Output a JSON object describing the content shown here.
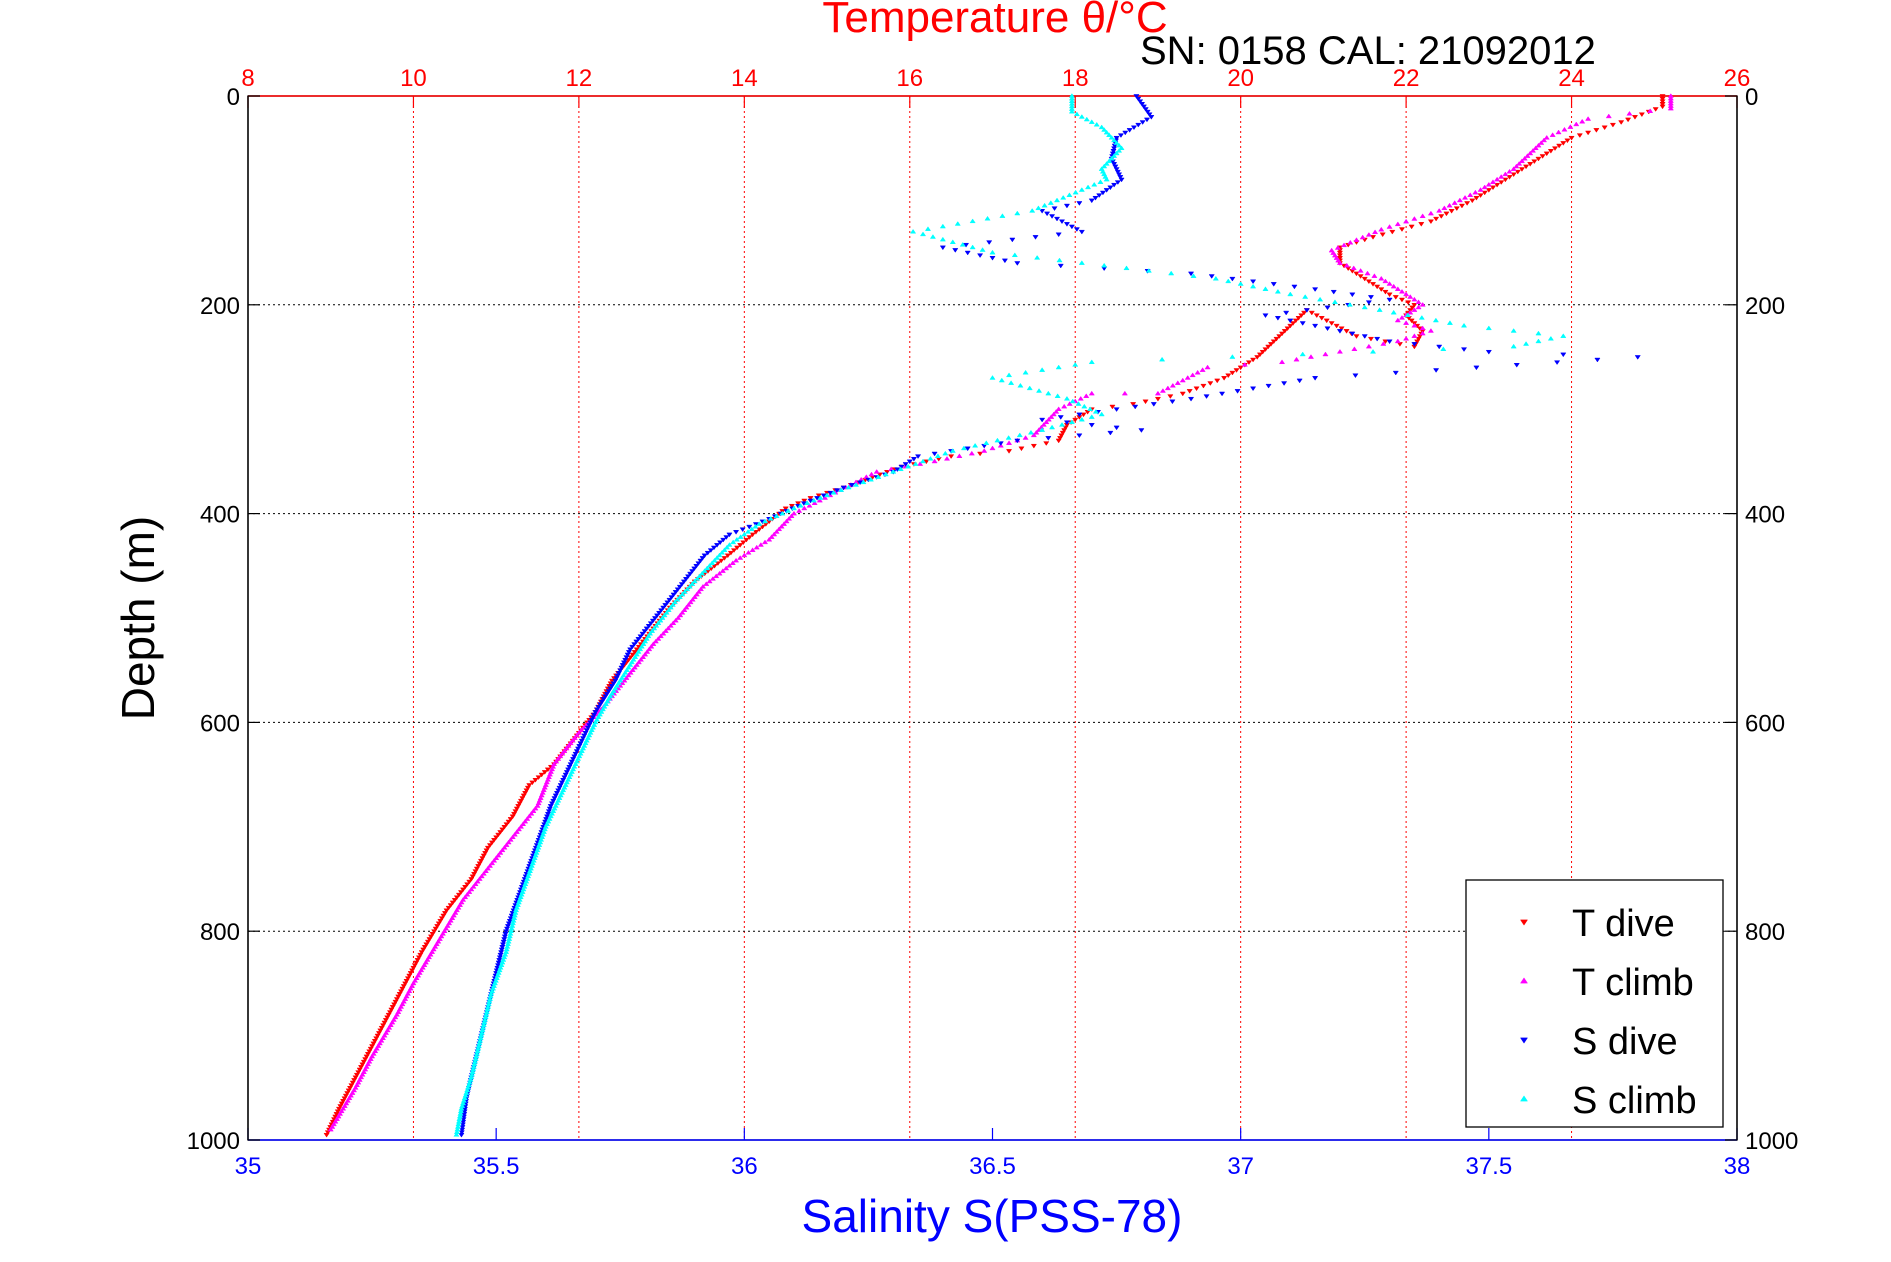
{
  "chart_data": {
    "type": "scatter",
    "title": "Temperature θ/°C",
    "subtitle": "SN: 0158  CAL: 21092012",
    "xlabel": "Salinity S(PSS-78)",
    "ylabel": "Depth (m)",
    "x_salinity": {
      "range": [
        35,
        38
      ],
      "ticks": [
        "35",
        "35.5",
        "36",
        "36.5",
        "37",
        "37.5",
        "38"
      ]
    },
    "x_temperature": {
      "range": [
        8,
        26
      ],
      "ticks": [
        "8",
        "10",
        "12",
        "14",
        "16",
        "18",
        "20",
        "22",
        "24",
        "26"
      ]
    },
    "y_depth": {
      "range": [
        0,
        1000
      ],
      "reversed": true,
      "ticks": [
        "0",
        "200",
        "400",
        "600",
        "800",
        "1000"
      ]
    },
    "grid": true,
    "legend_position": "bottom-right",
    "colors": {
      "title": "#ff0000",
      "temperature_axis": "#ff0000",
      "salinity_axis": "#0000ff",
      "grid_temperature": "#ff0000",
      "grid_depth": "#000000"
    },
    "series": [
      {
        "name": "T dive",
        "axis": "temperature",
        "marker": "triangle-down",
        "color": "#ff0000",
        "points": [
          [
            25.1,
            0
          ],
          [
            25.1,
            10
          ],
          [
            24.6,
            25
          ],
          [
            24.0,
            40
          ],
          [
            23.6,
            60
          ],
          [
            23.2,
            80
          ],
          [
            22.8,
            100
          ],
          [
            22.3,
            120
          ],
          [
            21.6,
            135
          ],
          [
            21.2,
            145
          ],
          [
            21.2,
            160
          ],
          [
            21.5,
            175
          ],
          [
            21.8,
            190
          ],
          [
            22.1,
            200
          ],
          [
            22.0,
            210
          ],
          [
            22.2,
            225
          ],
          [
            22.1,
            240
          ],
          [
            21.4,
            230
          ],
          [
            20.8,
            205
          ],
          [
            20.2,
            250
          ],
          [
            19.8,
            270
          ],
          [
            19.3,
            285
          ],
          [
            18.7,
            295
          ],
          [
            18.2,
            300
          ],
          [
            17.9,
            315
          ],
          [
            17.8,
            330
          ],
          [
            17.2,
            340
          ],
          [
            16.5,
            345
          ],
          [
            15.9,
            355
          ],
          [
            15.2,
            375
          ],
          [
            14.8,
            385
          ],
          [
            14.5,
            395
          ],
          [
            14.1,
            420
          ],
          [
            13.8,
            440
          ],
          [
            13.4,
            465
          ],
          [
            13.1,
            490
          ],
          [
            12.9,
            510
          ],
          [
            12.6,
            540
          ],
          [
            12.4,
            560
          ],
          [
            12.2,
            590
          ],
          [
            12.0,
            610
          ],
          [
            11.7,
            640
          ],
          [
            11.4,
            660
          ],
          [
            11.2,
            690
          ],
          [
            10.9,
            720
          ],
          [
            10.7,
            750
          ],
          [
            10.4,
            780
          ],
          [
            10.1,
            820
          ],
          [
            9.9,
            850
          ],
          [
            9.7,
            880
          ],
          [
            9.5,
            910
          ],
          [
            9.3,
            940
          ],
          [
            9.1,
            970
          ],
          [
            8.95,
            995
          ]
        ]
      },
      {
        "name": "T climb",
        "axis": "temperature",
        "marker": "triangle-up",
        "color": "#ff00ff",
        "points": [
          [
            25.2,
            0
          ],
          [
            25.2,
            12
          ],
          [
            24.2,
            22
          ],
          [
            23.7,
            40
          ],
          [
            23.3,
            70
          ],
          [
            22.9,
            90
          ],
          [
            22.4,
            110
          ],
          [
            21.7,
            128
          ],
          [
            21.1,
            148
          ],
          [
            21.2,
            160
          ],
          [
            21.7,
            175
          ],
          [
            21.9,
            185
          ],
          [
            22.2,
            200
          ],
          [
            21.9,
            215
          ],
          [
            22.3,
            225
          ],
          [
            21.9,
            235
          ],
          [
            20.5,
            255
          ],
          [
            19.6,
            260
          ],
          [
            19.0,
            285
          ],
          [
            18.2,
            285
          ],
          [
            17.8,
            300
          ],
          [
            17.5,
            325
          ],
          [
            16.9,
            340
          ],
          [
            16.3,
            350
          ],
          [
            15.6,
            360
          ],
          [
            15.1,
            380
          ],
          [
            14.6,
            400
          ],
          [
            14.3,
            425
          ],
          [
            13.9,
            445
          ],
          [
            13.5,
            470
          ],
          [
            13.2,
            500
          ],
          [
            12.9,
            525
          ],
          [
            12.6,
            555
          ],
          [
            12.3,
            585
          ],
          [
            12.0,
            610
          ],
          [
            11.7,
            640
          ],
          [
            11.5,
            680
          ],
          [
            11.2,
            710
          ],
          [
            10.9,
            740
          ],
          [
            10.6,
            770
          ],
          [
            10.3,
            810
          ],
          [
            10.0,
            850
          ],
          [
            9.8,
            880
          ],
          [
            9.5,
            920
          ],
          [
            9.3,
            950
          ],
          [
            9.0,
            990
          ]
        ]
      },
      {
        "name": "S dive",
        "axis": "salinity",
        "marker": "triangle-down",
        "color": "#0000ff",
        "points": [
          [
            36.79,
            0
          ],
          [
            36.82,
            20
          ],
          [
            36.75,
            40
          ],
          [
            36.74,
            60
          ],
          [
            36.76,
            80
          ],
          [
            36.7,
            100
          ],
          [
            36.6,
            110
          ],
          [
            36.68,
            130
          ],
          [
            36.4,
            145
          ],
          [
            36.55,
            160
          ],
          [
            36.9,
            170
          ],
          [
            37.15,
            185
          ],
          [
            37.3,
            195
          ],
          [
            37.05,
            210
          ],
          [
            37.3,
            235
          ],
          [
            37.5,
            245
          ],
          [
            37.8,
            250
          ],
          [
            37.15,
            270
          ],
          [
            36.9,
            290
          ],
          [
            36.75,
            300
          ],
          [
            36.6,
            310
          ],
          [
            36.8,
            320
          ],
          [
            36.55,
            330
          ],
          [
            36.35,
            345
          ],
          [
            36.3,
            360
          ],
          [
            36.2,
            375
          ],
          [
            36.12,
            390
          ],
          [
            36.05,
            405
          ],
          [
            35.97,
            420
          ],
          [
            35.92,
            440
          ],
          [
            35.87,
            470
          ],
          [
            35.82,
            500
          ],
          [
            35.77,
            530
          ],
          [
            35.74,
            560
          ],
          [
            35.7,
            590
          ],
          [
            35.67,
            620
          ],
          [
            35.64,
            650
          ],
          [
            35.61,
            680
          ],
          [
            35.58,
            720
          ],
          [
            35.55,
            760
          ],
          [
            35.52,
            800
          ],
          [
            35.5,
            840
          ],
          [
            35.48,
            880
          ],
          [
            35.46,
            920
          ],
          [
            35.44,
            960
          ],
          [
            35.43,
            995
          ]
        ]
      },
      {
        "name": "S climb",
        "axis": "salinity",
        "marker": "triangle-up",
        "color": "#00ffff",
        "points": [
          [
            36.66,
            0
          ],
          [
            36.66,
            15
          ],
          [
            36.72,
            30
          ],
          [
            36.76,
            50
          ],
          [
            36.72,
            70
          ],
          [
            36.73,
            80
          ],
          [
            36.68,
            90
          ],
          [
            36.58,
            110
          ],
          [
            36.34,
            130
          ],
          [
            36.5,
            150
          ],
          [
            36.95,
            175
          ],
          [
            37.1,
            190
          ],
          [
            37.28,
            205
          ],
          [
            37.45,
            220
          ],
          [
            37.65,
            230
          ],
          [
            37.55,
            240
          ],
          [
            36.7,
            255
          ],
          [
            36.5,
            270
          ],
          [
            36.65,
            290
          ],
          [
            36.72,
            305
          ],
          [
            36.6,
            320
          ],
          [
            36.42,
            340
          ],
          [
            36.3,
            360
          ],
          [
            36.18,
            380
          ],
          [
            36.1,
            395
          ],
          [
            36.03,
            410
          ],
          [
            35.97,
            430
          ],
          [
            35.92,
            455
          ],
          [
            35.86,
            485
          ],
          [
            35.81,
            515
          ],
          [
            35.77,
            545
          ],
          [
            35.73,
            575
          ],
          [
            35.7,
            600
          ],
          [
            35.66,
            640
          ],
          [
            35.63,
            670
          ],
          [
            35.6,
            700
          ],
          [
            35.57,
            740
          ],
          [
            35.54,
            780
          ],
          [
            35.52,
            820
          ],
          [
            35.49,
            860
          ],
          [
            35.47,
            900
          ],
          [
            35.45,
            940
          ],
          [
            35.43,
            970
          ],
          [
            35.42,
            995
          ]
        ]
      }
    ]
  }
}
